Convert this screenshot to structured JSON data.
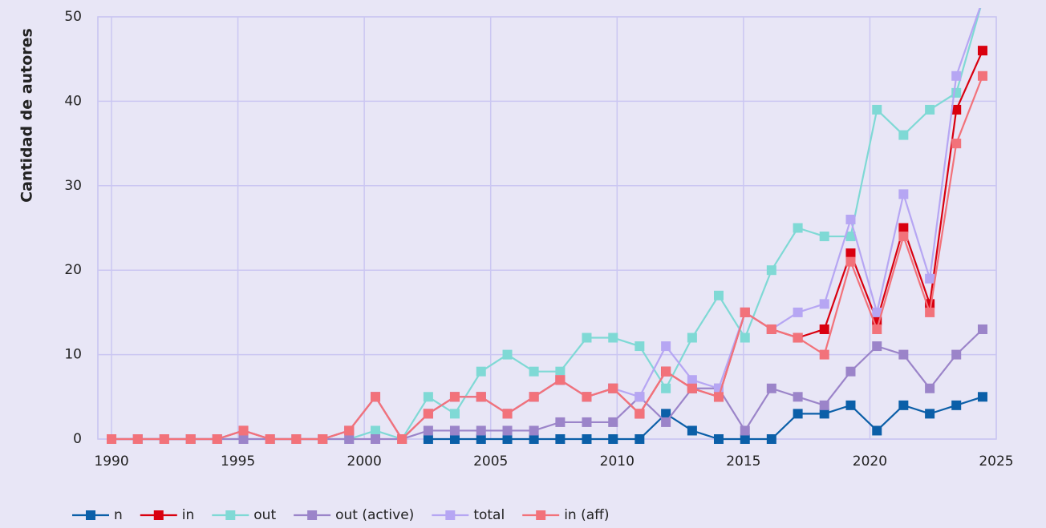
{
  "chart_data": {
    "type": "line",
    "ylabel": "Cantidad de autores",
    "x": [
      1990,
      1991.04,
      1992.09,
      1993.13,
      1994.18,
      1995.22,
      1996.27,
      1997.31,
      1998.35,
      1999.4,
      2000.44,
      2001.49,
      2002.53,
      2003.58,
      2004.62,
      2005.66,
      2006.71,
      2007.75,
      2008.8,
      2009.84,
      2010.89,
      2011.93,
      2012.97,
      2014.02,
      2015.06,
      2016.11,
      2017.15,
      2018.2,
      2019.24,
      2020.28,
      2021.33,
      2022.37,
      2023.42,
      2024.46
    ],
    "xlim": [
      1989.46,
      2025
    ],
    "xticks": [
      1990,
      1995,
      2000,
      2005,
      2010,
      2015,
      2020,
      2025
    ],
    "ylim": [
      0,
      50
    ],
    "yticks": [
      0,
      10,
      20,
      30,
      40,
      50
    ],
    "grid": true,
    "legend": "bottom",
    "series": [
      {
        "name": "n",
        "color": "#0b5fa8",
        "values": [
          null,
          null,
          null,
          null,
          null,
          null,
          null,
          null,
          null,
          null,
          null,
          null,
          0,
          0,
          0,
          0,
          0,
          0,
          0,
          0,
          0,
          3,
          1,
          0,
          0,
          0,
          3,
          3,
          4,
          1,
          4,
          3,
          4,
          5
        ]
      },
      {
        "name": "in",
        "color": "#d9000f",
        "values": [
          0,
          0,
          0,
          0,
          0,
          1,
          0,
          0,
          0,
          1,
          5,
          0,
          3,
          5,
          5,
          3,
          5,
          7,
          5,
          6,
          3,
          8,
          6,
          5,
          15,
          13,
          12,
          13,
          22,
          14,
          25,
          16,
          39,
          46
        ]
      },
      {
        "name": "out",
        "color": "#7fd9d5",
        "values": [
          0,
          0,
          0,
          0,
          0,
          0,
          0,
          0,
          0,
          0,
          1,
          0,
          5,
          3,
          8,
          10,
          8,
          8,
          12,
          12,
          11,
          6,
          12,
          17,
          12,
          20,
          25,
          24,
          24,
          39,
          36,
          39,
          41,
          52
        ]
      },
      {
        "name": "out (active)",
        "color": "#9b84c9",
        "values": [
          0,
          0,
          0,
          0,
          0,
          0,
          0,
          0,
          0,
          0,
          0,
          0,
          1,
          1,
          1,
          1,
          1,
          2,
          2,
          2,
          5,
          2,
          6,
          6,
          1,
          6,
          5,
          4,
          8,
          11,
          10,
          6,
          10,
          13
        ]
      },
      {
        "name": "total",
        "color": "#b6a6f3",
        "values": [
          0,
          0,
          0,
          0,
          0,
          1,
          0,
          0,
          0,
          1,
          5,
          0,
          3,
          5,
          5,
          3,
          5,
          7,
          5,
          6,
          5,
          11,
          7,
          6,
          15,
          13,
          15,
          16,
          26,
          15,
          29,
          19,
          43,
          52
        ]
      },
      {
        "name": "in (aff)",
        "color": "#f2727a",
        "values": [
          0,
          0,
          0,
          0,
          0,
          1,
          0,
          0,
          0,
          1,
          5,
          0,
          3,
          5,
          5,
          3,
          5,
          7,
          5,
          6,
          3,
          8,
          6,
          5,
          15,
          13,
          12,
          10,
          21,
          13,
          24,
          15,
          35,
          43
        ]
      }
    ]
  }
}
